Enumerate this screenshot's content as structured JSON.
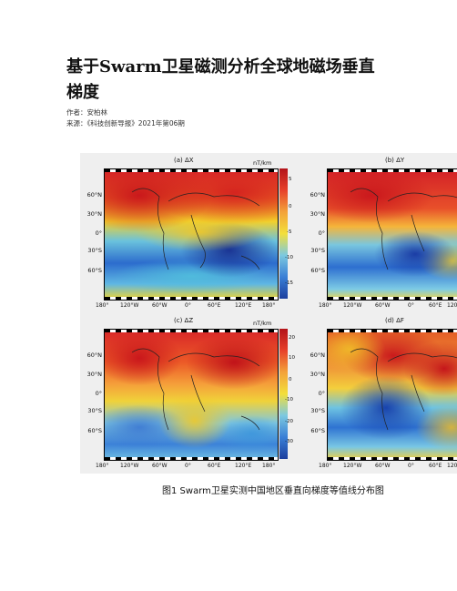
{
  "document": {
    "title_line1": "基于Swarm卫星磁测分析全球地磁场垂直",
    "title_line2": "梯度",
    "author": "作者：安柏林",
    "source": "来源：《科技创新导报》2021年第06期"
  },
  "figure": {
    "caption": "图1   Swarm卫星实测中国地区垂直向梯度等值线分布图",
    "x_ticks": [
      "180°",
      "120°W",
      "60°W",
      "0°",
      "60°E",
      "120°E",
      "180°"
    ],
    "x_ticks_right": [
      "180°",
      "120°W",
      "60°W",
      "0°",
      "60°E",
      "120"
    ],
    "y_ticks": [
      "60°N",
      "30°N",
      "0°",
      "30°S",
      "60°S"
    ],
    "unit": "nT/km",
    "panels": [
      {
        "title": "(a) ΔX",
        "cbar_ticks": [
          "5",
          "0",
          "-5",
          "-10",
          "-15"
        ]
      },
      {
        "title": "(b) ΔY",
        "cbar_ticks": []
      },
      {
        "title": "(c) ΔZ",
        "cbar_ticks": [
          "20",
          "10",
          "0",
          "-10",
          "-20",
          "-30"
        ]
      },
      {
        "title": "(d) ΔF",
        "cbar_ticks": []
      }
    ]
  },
  "colors": {
    "map_blue": "#2d6fd0",
    "map_red": "#c8141b",
    "map_yellow": "#f2d32a",
    "background": "#efefef"
  }
}
